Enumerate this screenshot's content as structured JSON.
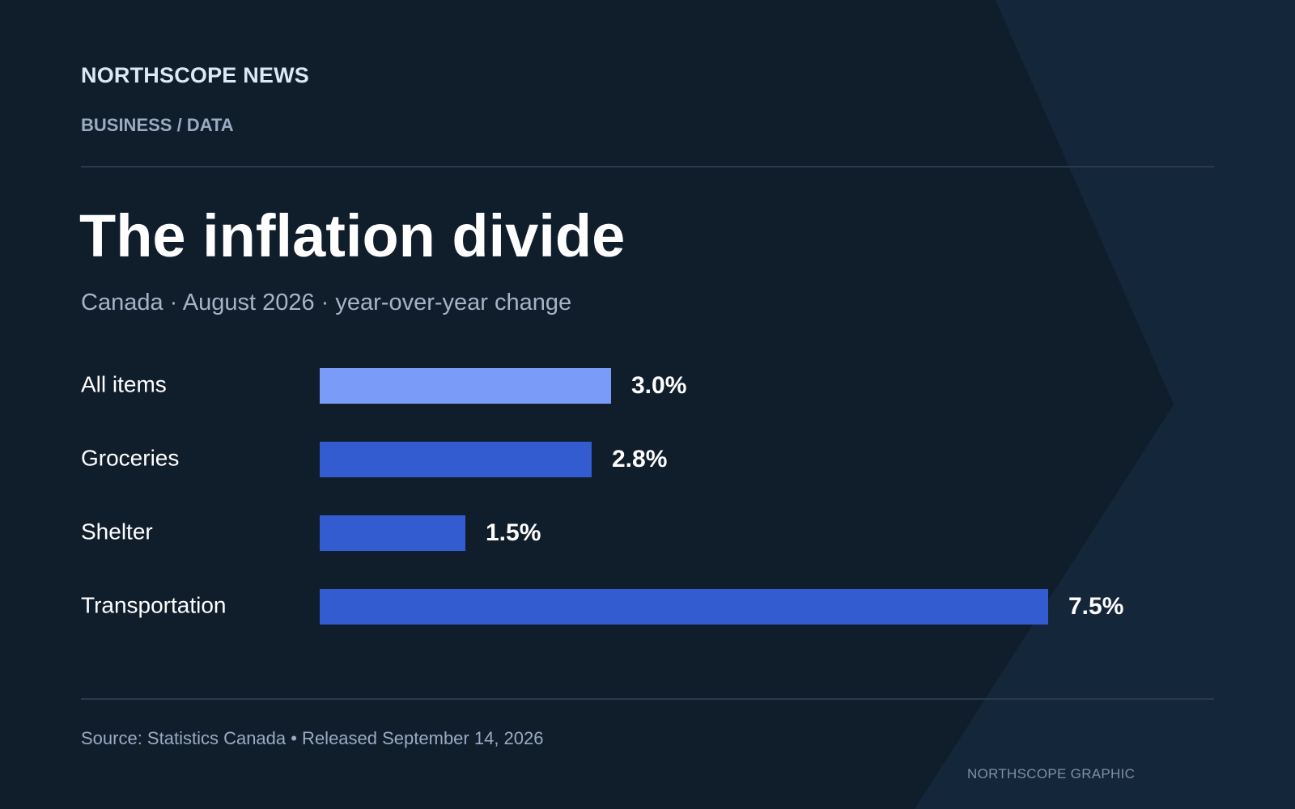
{
  "header": {
    "masthead": "NORTHSCOPE NEWS",
    "section": "BUSINESS / DATA"
  },
  "headline": "The inflation divide",
  "subtitle": "Canada · August 2026 · year-over-year change",
  "chart_data": {
    "type": "bar",
    "orientation": "horizontal",
    "categories": [
      "All items",
      "Groceries",
      "Shelter",
      "Transportation"
    ],
    "values": [
      3.0,
      2.8,
      1.5,
      7.5
    ],
    "value_labels": [
      "3.0%",
      "2.8%",
      "1.5%",
      "7.5%"
    ],
    "unit": "%",
    "xlim": [
      0,
      7.5
    ],
    "grid": false,
    "legend": "none",
    "colors": [
      "#7b9bf8",
      "#325ccf",
      "#325ccf",
      "#325ccf"
    ]
  },
  "footer": {
    "source": "Source: Statistics Canada • Released September 14, 2026",
    "credit": "NORTHSCOPE GRAPHIC"
  },
  "colors": {
    "background": "#101d2b",
    "accent_shape": "#14263a",
    "highlight_bar": "#7b9bf8",
    "bar": "#325ccf"
  }
}
